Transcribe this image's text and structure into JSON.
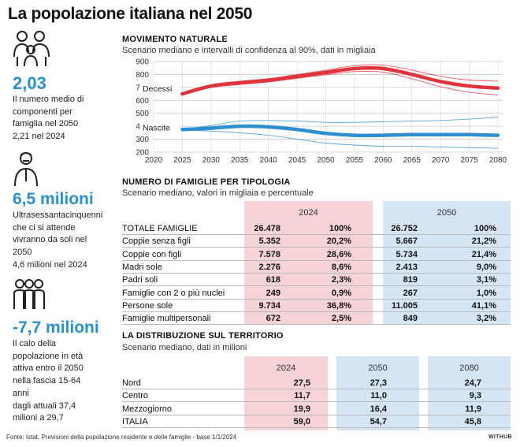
{
  "title": "La popolazione italiana nel 2050",
  "sidebar": {
    "stats": [
      {
        "icon": "family-icon",
        "value": "2,03",
        "lines": [
          "Il numero medio di",
          "componenti per",
          "famiglia nel 2050",
          "2,21 nel 2024"
        ]
      },
      {
        "icon": "elderly-person-icon",
        "value": "6,5 milioni",
        "lines": [
          "Ultrasessantacinquenni",
          "che ci si attende",
          "vivranno da soli nel",
          "2050",
          "4,6 milioni nel 2024"
        ]
      },
      {
        "icon": "working-group-icon",
        "value": "-7,7 milioni",
        "lines": [
          "Il calo della",
          "popolazione in età",
          "attiva entro il 2050",
          "nella fascia 15-64",
          "anni",
          "dagli attuali 37,4",
          "milioni a 29,7"
        ]
      }
    ]
  },
  "natural_movement": {
    "title": "MOVIMENTO NATURALE",
    "subtitle": "Scenario mediano e intervalli di confidenza al 90%, dati in migliaia"
  },
  "chart_data": {
    "type": "line",
    "title": "MOVIMENTO NATURALE",
    "subtitle": "Scenario mediano e intervalli di confidenza al 90%, dati in migliaia",
    "xlim": [
      2020,
      2080
    ],
    "ylim": [
      200,
      900
    ],
    "x_ticks": [
      2020,
      2025,
      2030,
      2035,
      2040,
      2045,
      2050,
      2055,
      2060,
      2065,
      2070,
      2075,
      2080
    ],
    "y_ticks": [
      200,
      300,
      400,
      500,
      600,
      700,
      800,
      900
    ],
    "grid": true,
    "series": [
      {
        "name": "Decessi",
        "color": "#e0343d",
        "x": [
          2025,
          2030,
          2035,
          2040,
          2045,
          2050,
          2055,
          2060,
          2065,
          2070,
          2075,
          2080
        ],
        "values": [
          650,
          710,
          735,
          755,
          785,
          815,
          845,
          845,
          800,
          745,
          710,
          695
        ],
        "lower": [
          648,
          700,
          722,
          742,
          770,
          797,
          822,
          818,
          767,
          705,
          663,
          642
        ],
        "upper": [
          652,
          720,
          748,
          768,
          800,
          833,
          868,
          872,
          833,
          785,
          757,
          748
        ]
      },
      {
        "name": "Nascite",
        "color": "#2d8fd0",
        "x": [
          2025,
          2030,
          2035,
          2040,
          2045,
          2050,
          2055,
          2060,
          2065,
          2070,
          2075,
          2080
        ],
        "values": [
          375,
          385,
          400,
          395,
          375,
          345,
          330,
          330,
          335,
          335,
          335,
          330
        ],
        "lower": [
          373,
          362,
          350,
          330,
          300,
          270,
          255,
          245,
          245,
          240,
          235,
          230
        ],
        "upper": [
          377,
          405,
          440,
          445,
          440,
          430,
          430,
          435,
          440,
          445,
          455,
          470
        ]
      }
    ]
  },
  "family_types": {
    "title": "NUMERO DI FAMIGLIE PER TIPOLOGIA",
    "subtitle": "Scenario mediano, valori in migliaia e percentuale",
    "years": [
      "2024",
      "2050"
    ],
    "rows": [
      {
        "label": "TOTALE FAMIGLIE",
        "v2024": "26.478",
        "p2024": "100%",
        "v2050": "26.752",
        "p2050": "100%"
      },
      {
        "label": "Coppie senza figli",
        "v2024": "5.352",
        "p2024": "20,2%",
        "v2050": "5.667",
        "p2050": "21,2%"
      },
      {
        "label": "Coppie con figli",
        "v2024": "7.578",
        "p2024": "28,6%",
        "v2050": "5.734",
        "p2050": "21,4%"
      },
      {
        "label": "Madri sole",
        "v2024": "2.276",
        "p2024": "8,6%",
        "v2050": "2.413",
        "p2050": "9,0%"
      },
      {
        "label": "Padri soli",
        "v2024": "618",
        "p2024": "2,3%",
        "v2050": "819",
        "p2050": "3,1%"
      },
      {
        "label": "Famiglie con 2 o più nuclei",
        "v2024": "249",
        "p2024": "0,9%",
        "v2050": "267",
        "p2050": "1,0%"
      },
      {
        "label": "Persone sole",
        "v2024": "9.734",
        "p2024": "36,8%",
        "v2050": "11.005",
        "p2050": "41,1%"
      },
      {
        "label": "Famiglie multipersonali",
        "v2024": "672",
        "p2024": "2,5%",
        "v2050": "849",
        "p2050": "3,2%"
      }
    ]
  },
  "territory": {
    "title": "LA DISTRIBUZIONE SUL TERRITORIO",
    "subtitle": "Scenario mediano, dati in milioni",
    "years": [
      "2024",
      "2050",
      "2080"
    ],
    "rows": [
      {
        "label": "Nord",
        "v2024": "27,5",
        "v2050": "27,3",
        "v2080": "24,7"
      },
      {
        "label": "Centro",
        "v2024": "11,7",
        "v2050": "11,0",
        "v2080": "9,3"
      },
      {
        "label": "Mezzogiorno",
        "v2024": "19,9",
        "v2050": "16,4",
        "v2080": "11,9"
      },
      {
        "label": "ITALIA",
        "v2024": "59,0",
        "v2050": "54,7",
        "v2080": "45,8"
      }
    ]
  },
  "source": "Fonte: Istat, Previsioni della popolazione residente e delle famiglie - base 1/1/2024",
  "brand": "WITHUB",
  "colors": {
    "accent": "#2b8fcb",
    "pink_column": "#f6d3d9",
    "blue_column": "#d5e5f4",
    "decessi": "#e0343d",
    "nascite": "#2d8fd0"
  }
}
